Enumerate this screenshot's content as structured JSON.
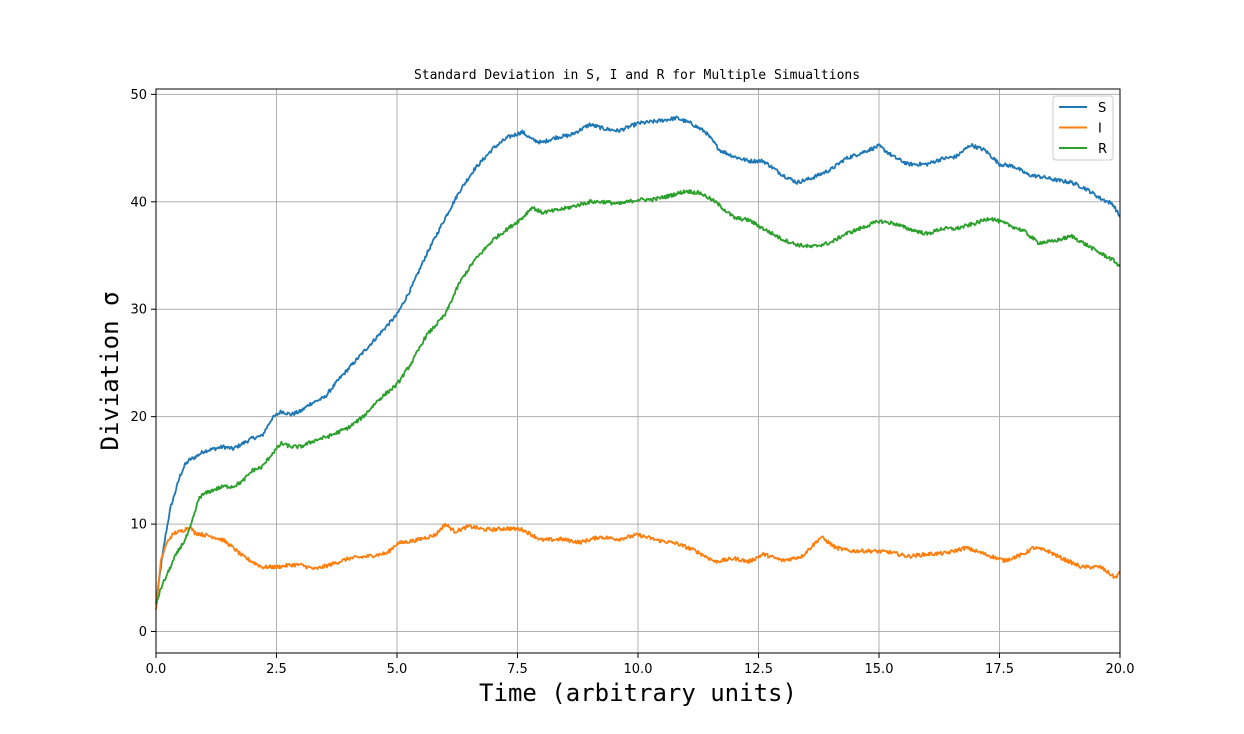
{
  "chart_data": {
    "type": "line",
    "title": "Standard Deviation in S, I and R for Multiple Simualtions",
    "xlabel": "Time (arbitrary units)",
    "ylabel": "Diviation σ",
    "xlim": [
      0,
      20
    ],
    "ylim": [
      -2,
      50.5
    ],
    "xticks": [
      "0.0",
      "2.5",
      "5.0",
      "7.5",
      "10.0",
      "12.5",
      "15.0",
      "17.5",
      "20.0"
    ],
    "yticks": [
      "0",
      "10",
      "20",
      "30",
      "40",
      "50"
    ],
    "grid": true,
    "legend_position": "top-right",
    "series": [
      {
        "name": "S",
        "color": "#1f77b4",
        "x": [
          0,
          0.1,
          0.2,
          0.3,
          0.4,
          0.5,
          0.6,
          0.7,
          0.8,
          0.9,
          1.0,
          1.2,
          1.4,
          1.6,
          1.8,
          2.0,
          2.2,
          2.4,
          2.6,
          2.8,
          3.0,
          3.2,
          3.5,
          3.8,
          4.0,
          4.3,
          4.6,
          5.0,
          5.3,
          5.6,
          6.0,
          6.3,
          6.6,
          7.0,
          7.3,
          7.6,
          7.8,
          8.0,
          8.3,
          8.6,
          9.0,
          9.3,
          9.6,
          10.0,
          10.4,
          10.8,
          11.1,
          11.4,
          11.7,
          12.0,
          12.3,
          12.6,
          13.0,
          13.3,
          13.6,
          14.0,
          14.3,
          14.6,
          15.0,
          15.3,
          15.6,
          16.0,
          16.3,
          16.6,
          16.9,
          17.2,
          17.5,
          17.8,
          18.1,
          18.4,
          18.7,
          19.0,
          19.3,
          19.6,
          19.85,
          20.0
        ],
        "y": [
          2.5,
          6,
          9,
          11.5,
          13,
          14.5,
          15.5,
          16,
          16.2,
          16.5,
          16.8,
          17,
          17.2,
          17,
          17.5,
          18,
          18.2,
          19.8,
          20.5,
          20.2,
          20.5,
          21.2,
          21.8,
          23.5,
          24.5,
          26,
          27.5,
          29.5,
          32,
          35,
          38.5,
          41,
          43,
          45,
          46,
          46.5,
          45.8,
          45.5,
          46,
          46.2,
          47.2,
          46.8,
          46.6,
          47.3,
          47.5,
          47.8,
          47.3,
          46.5,
          44.8,
          44.2,
          43.8,
          43.8,
          42.5,
          41.8,
          42.2,
          43,
          44,
          44.5,
          45.2,
          44.2,
          43.5,
          43.5,
          44,
          44.2,
          45.3,
          44.8,
          43.5,
          43.3,
          42.5,
          42.3,
          42,
          41.8,
          41.2,
          40.3,
          39.8,
          38.6
        ]
      },
      {
        "name": "I",
        "color": "#ff7f0e",
        "x": [
          0,
          0.1,
          0.2,
          0.3,
          0.4,
          0.5,
          0.6,
          0.7,
          0.8,
          1.0,
          1.2,
          1.4,
          1.6,
          1.8,
          2.0,
          2.2,
          2.5,
          2.8,
          3.0,
          3.3,
          3.6,
          4.0,
          4.4,
          4.8,
          5.0,
          5.4,
          5.8,
          6.0,
          6.2,
          6.5,
          6.8,
          7.0,
          7.3,
          7.6,
          8.0,
          8.4,
          8.8,
          9.2,
          9.6,
          10.0,
          10.4,
          10.8,
          11.2,
          11.6,
          12.0,
          12.3,
          12.6,
          13.0,
          13.4,
          13.8,
          14.1,
          14.4,
          14.8,
          15.2,
          15.6,
          16.0,
          16.4,
          16.8,
          17.2,
          17.6,
          18.0,
          18.2,
          18.5,
          18.8,
          19.2,
          19.6,
          19.9,
          20.0
        ],
        "y": [
          2,
          6.5,
          8,
          8.8,
          9.2,
          9.3,
          9.5,
          9.8,
          9.2,
          9.0,
          8.8,
          8.5,
          7.8,
          7.0,
          6.5,
          6.0,
          6.0,
          6.2,
          6.2,
          5.8,
          6.2,
          6.8,
          7.0,
          7.3,
          8.2,
          8.5,
          9.0,
          10.0,
          9.3,
          9.8,
          9.5,
          9.5,
          9.6,
          9.5,
          8.5,
          8.6,
          8.3,
          8.8,
          8.6,
          9.0,
          8.5,
          8.2,
          7.5,
          6.5,
          6.8,
          6.5,
          7.2,
          6.6,
          7.0,
          8.8,
          7.8,
          7.5,
          7.5,
          7.4,
          7.0,
          7.2,
          7.3,
          7.8,
          7.2,
          6.6,
          7.2,
          7.8,
          7.5,
          6.8,
          6.0,
          6.0,
          5.0,
          5.5
        ]
      },
      {
        "name": "R",
        "color": "#2ca02c",
        "x": [
          0,
          0.1,
          0.2,
          0.3,
          0.4,
          0.5,
          0.6,
          0.7,
          0.8,
          0.9,
          1.0,
          1.2,
          1.4,
          1.6,
          1.8,
          2.0,
          2.2,
          2.4,
          2.6,
          2.8,
          3.0,
          3.3,
          3.6,
          4.0,
          4.3,
          4.6,
          5.0,
          5.3,
          5.6,
          6.0,
          6.3,
          6.6,
          7.0,
          7.3,
          7.6,
          7.8,
          8.0,
          8.3,
          8.6,
          9.0,
          9.3,
          9.6,
          10.0,
          10.3,
          10.6,
          11.0,
          11.3,
          11.6,
          12.0,
          12.3,
          12.6,
          13.0,
          13.3,
          13.6,
          14.0,
          14.3,
          14.6,
          15.0,
          15.3,
          15.6,
          16.0,
          16.3,
          16.6,
          17.0,
          17.3,
          17.6,
          18.0,
          18.3,
          18.6,
          19.0,
          19.3,
          19.6,
          19.85,
          20.0
        ],
        "y": [
          2.5,
          4,
          5,
          6,
          7,
          7.8,
          8.5,
          9.5,
          11,
          12.5,
          12.8,
          13.2,
          13.5,
          13.5,
          14,
          15,
          15.3,
          16.5,
          17.5,
          17.2,
          17.2,
          17.8,
          18.2,
          19,
          20,
          21.5,
          23,
          25,
          27.5,
          29.5,
          32.5,
          34.5,
          36.5,
          37.5,
          38.5,
          39.5,
          39,
          39.2,
          39.5,
          40,
          40,
          39.8,
          40.2,
          40.2,
          40.5,
          41,
          40.8,
          40,
          38.5,
          38.3,
          37.5,
          36.5,
          36,
          35.8,
          36.2,
          37,
          37.5,
          38.2,
          38,
          37.5,
          37,
          37.5,
          37.5,
          38,
          38.5,
          38,
          37.3,
          36.2,
          36.3,
          36.8,
          36,
          35.2,
          34.6,
          34
        ]
      }
    ]
  }
}
